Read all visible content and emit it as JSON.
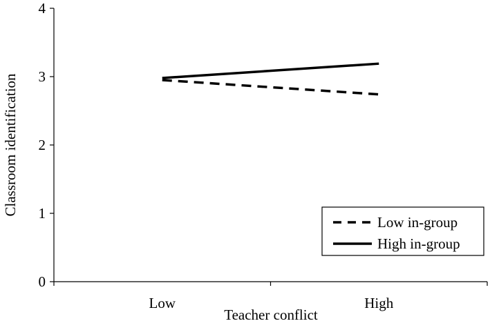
{
  "chart_data": {
    "type": "line",
    "x_label": "Teacher conflict",
    "y_label": "Classroom identification",
    "categories": [
      "Low",
      "High"
    ],
    "series": [
      {
        "name": "Low in-group",
        "color": "#000000",
        "dash": true,
        "values": [
          2.95,
          2.74
        ]
      },
      {
        "name": "High in-group",
        "color": "#000000",
        "dash": false,
        "values": [
          2.98,
          3.19
        ]
      }
    ],
    "ylim": [
      0,
      4
    ],
    "yticks": [
      0,
      1,
      2,
      3,
      4
    ],
    "legend": "lower right"
  }
}
